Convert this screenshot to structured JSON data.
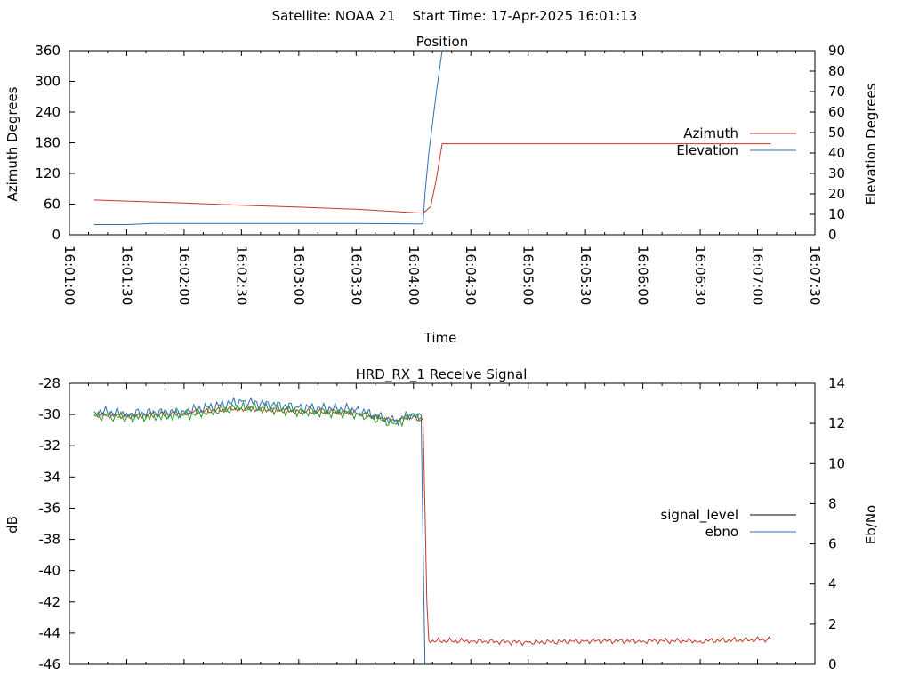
{
  "header": {
    "text": "Satellite: NOAA 21    Start Time: 17-Apr-2025 16:01:13"
  },
  "chart_data": [
    {
      "type": "line",
      "title": "Position",
      "xlabel": "Time",
      "ylabel": "Azimuth Degrees",
      "y2label": "Elevation Degrees",
      "x_tick_labels": [
        "16:01:00",
        "16:01:30",
        "16:02:00",
        "16:02:30",
        "16:03:00",
        "16:03:30",
        "16:04:00",
        "16:04:30",
        "16:05:00",
        "16:05:30",
        "16:06:00",
        "16:06:30",
        "16:07:00",
        "16:07:30"
      ],
      "xlim_seconds": [
        0,
        390
      ],
      "ylim": [
        0,
        360
      ],
      "y_ticks": [
        0,
        60,
        120,
        180,
        240,
        300,
        360
      ],
      "y2lim": [
        0,
        90
      ],
      "y2_ticks": [
        0,
        10,
        20,
        30,
        40,
        50,
        60,
        70,
        80,
        90
      ],
      "grid": false,
      "legend_position": "right",
      "series": [
        {
          "name": "Azimuth",
          "axis": "y",
          "color": "#c0392b",
          "x": [
            "16:01:13",
            "16:01:30",
            "16:02:00",
            "16:02:30",
            "16:03:00",
            "16:03:30",
            "16:04:05",
            "16:04:09",
            "16:04:12",
            "16:04:15",
            "16:04:30",
            "16:05:00",
            "16:06:00",
            "16:07:07"
          ],
          "y": [
            68,
            66,
            62,
            58,
            54,
            50,
            42,
            55,
            110,
            178,
            178,
            178,
            178,
            178
          ]
        },
        {
          "name": "Elevation",
          "axis": "y2",
          "color": "#2c6fb5",
          "x": [
            "16:01:13",
            "16:01:30",
            "16:01:44",
            "16:02:30",
            "16:03:00",
            "16:03:30",
            "16:04:00",
            "16:04:05",
            "16:04:06",
            "16:04:08",
            "16:04:10",
            "16:04:12",
            "16:04:15"
          ],
          "y": [
            5,
            5,
            5.5,
            5.5,
            5.5,
            5.5,
            5.3,
            5.3,
            20,
            40,
            55,
            70,
            90
          ]
        }
      ]
    },
    {
      "type": "line",
      "title": "HRD_RX_1 Receive Signal",
      "xlabel": "",
      "ylabel": "dB",
      "y2label": "Eb/No",
      "xlim_seconds": [
        0,
        390
      ],
      "ylim": [
        -46,
        -28
      ],
      "y_ticks": [
        -46,
        -44,
        -42,
        -40,
        -38,
        -36,
        -34,
        -32,
        -30,
        -28
      ],
      "y2lim": [
        0,
        14
      ],
      "y2_ticks": [
        0,
        2,
        4,
        6,
        8,
        10,
        12,
        14
      ],
      "grid": false,
      "legend_position": "right",
      "series": [
        {
          "name": "signal_level",
          "axis": "y",
          "legend_color": "#000000",
          "color": "#c0392b",
          "x": [
            "16:01:13",
            "16:01:30",
            "16:02:00",
            "16:02:30",
            "16:03:00",
            "16:03:30",
            "16:03:50",
            "16:04:00",
            "16:04:05",
            "16:04:06",
            "16:04:07",
            "16:04:08",
            "16:04:30",
            "16:05:00",
            "16:05:30",
            "16:06:00",
            "16:06:30",
            "16:07:07"
          ],
          "y": [
            -30.0,
            -30.1,
            -29.9,
            -29.6,
            -29.8,
            -29.9,
            -30.4,
            -30.1,
            -30.4,
            -36.0,
            -42.0,
            -44.5,
            -44.5,
            -44.6,
            -44.5,
            -44.5,
            -44.5,
            -44.4
          ]
        },
        {
          "name": "ebno",
          "axis": "y2",
          "color": "#2c6fb5",
          "x": [
            "16:01:13",
            "16:01:30",
            "16:02:00",
            "16:02:30",
            "16:03:00",
            "16:03:30",
            "16:03:50",
            "16:04:00",
            "16:04:04",
            "16:04:06"
          ],
          "y": [
            12.6,
            12.5,
            12.6,
            13.1,
            12.8,
            12.7,
            12.1,
            12.5,
            12.4,
            0
          ]
        },
        {
          "name": "",
          "axis": "y2",
          "color": "#22a022",
          "x": [
            "16:01:13",
            "16:01:30",
            "16:02:00",
            "16:02:30",
            "16:03:00",
            "16:03:30",
            "16:03:50",
            "16:04:00",
            "16:04:04"
          ],
          "y": [
            12.4,
            12.3,
            12.4,
            12.8,
            12.6,
            12.5,
            12.0,
            12.4,
            12.2
          ]
        }
      ]
    }
  ]
}
